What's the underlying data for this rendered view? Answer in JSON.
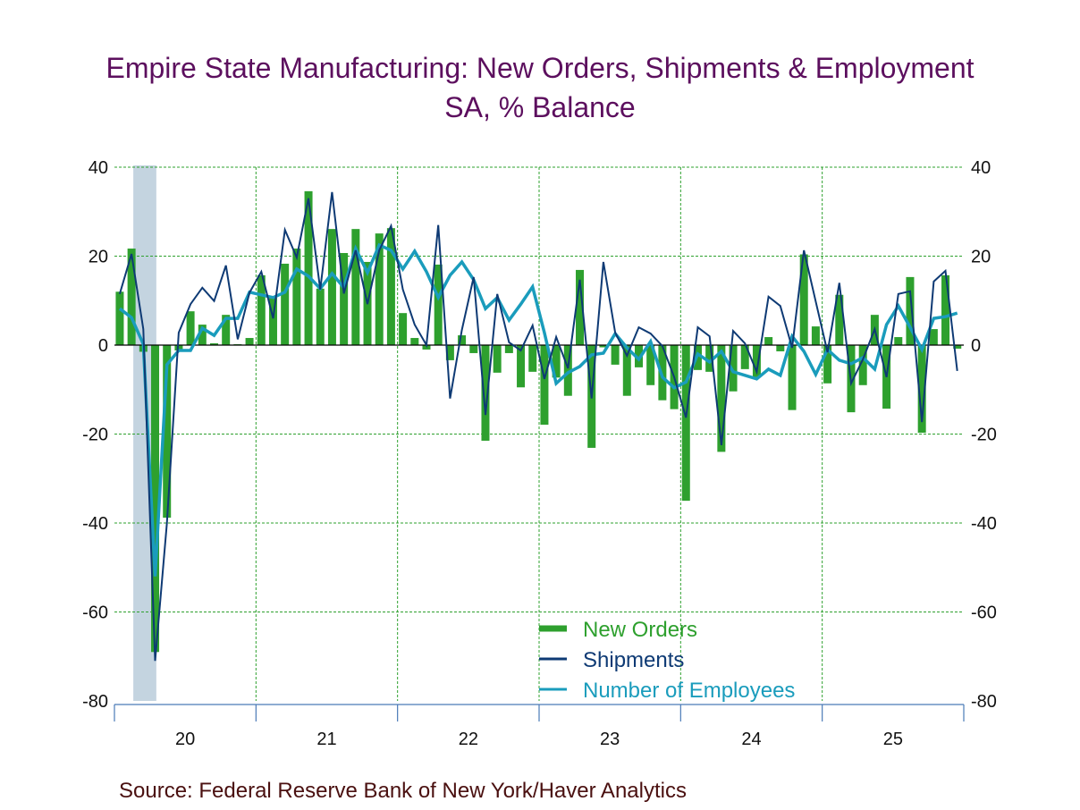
{
  "chart_data": {
    "type": "bar+line",
    "title": "Empire State Manufacturing: New Orders, Shipments & Employment",
    "subtitle": "SA, % Balance",
    "source": "Source:  Federal Reserve Bank of New York/Haver Analytics",
    "frequency": "monthly",
    "start": "2020-01",
    "end": "2025-12",
    "ylim": [
      -80,
      40
    ],
    "yticks": [
      "40",
      "20",
      "0",
      "-20",
      "-40",
      "-60",
      "-80"
    ],
    "ytick_values": [
      40,
      20,
      0,
      -20,
      -40,
      -60,
      -80
    ],
    "xtick_labels": [
      "20",
      "21",
      "22",
      "23",
      "24",
      "25"
    ],
    "grid": true,
    "legend_position": "bottom-center",
    "recession_shading": {
      "start": "2020-02",
      "end": "2020-04"
    },
    "series": [
      {
        "name": "New Orders",
        "kind": "bar",
        "color": "#2ea02e",
        "values": [
          12,
          21.7,
          -1.5,
          -69,
          -38.8,
          -1.2,
          7.6,
          4.6,
          0.4,
          6.8,
          0.2,
          1.6,
          15.7,
          10.7,
          18.3,
          21.7,
          34.6,
          12.7,
          26.1,
          20.7,
          26.1,
          18.7,
          25.1,
          26.3,
          7.2,
          1.6,
          -1,
          18.1,
          -3.4,
          2.2,
          -1.8,
          -21.5,
          -6.2,
          -1.8,
          -9.5,
          -6,
          -17.9,
          -7.3,
          -11.4,
          16.9,
          -23.1,
          -0.5,
          -4.4,
          -11.4,
          -5,
          -9,
          -12.4,
          -14.4,
          -35,
          -5.6,
          -6,
          -24,
          -10.4,
          -5.4,
          -7.2,
          1.8,
          -1.4,
          -14.6,
          20.4,
          4.2,
          -8.6,
          11.3,
          -15.1,
          -9,
          6.8,
          -14.3,
          1.8,
          15.3,
          -19.7,
          3.6,
          15.7,
          -0.8
        ]
      },
      {
        "name": "Shipments",
        "kind": "line",
        "color": "#0e3a74",
        "values": [
          11.5,
          20.5,
          3.6,
          -71,
          -40,
          2.8,
          9.2,
          12.9,
          9.9,
          17.9,
          1.3,
          11.8,
          16.5,
          6,
          25.9,
          19.7,
          33,
          12.5,
          34.4,
          11.6,
          21.3,
          9.2,
          21.3,
          26.8,
          12.5,
          4.6,
          0,
          27,
          -12,
          3.4,
          15.3,
          -15.7,
          11.5,
          0.6,
          -1.2,
          4.4,
          -7.6,
          1.8,
          -5.2,
          14.7,
          -12,
          18.7,
          2.8,
          -2.4,
          4,
          2.6,
          -0.2,
          -7.2,
          -16.3,
          4,
          2,
          -22.5,
          3.2,
          0.4,
          -6,
          10.9,
          8.8,
          -0.6,
          21.3,
          9.8,
          -1.6,
          14,
          -8.6,
          -3.2,
          3.6,
          -7.2,
          11.5,
          12.1,
          -17.3,
          14.3,
          16.7,
          -5.8
        ]
      },
      {
        "name": "Number of Employees",
        "kind": "line",
        "color": "#1a9cbc",
        "values": [
          8.2,
          6.2,
          0.2,
          -52,
          -4.4,
          -1.2,
          -1.2,
          3.8,
          2.2,
          6,
          6,
          11.9,
          11.3,
          10.7,
          11.9,
          17.1,
          15.5,
          12.7,
          16.1,
          12.9,
          21.7,
          16.3,
          22.5,
          21.3,
          17.1,
          21.1,
          16.5,
          10.7,
          15.7,
          18.7,
          14.7,
          8.2,
          10.7,
          5.6,
          9.2,
          13.1,
          2.8,
          -8.6,
          -6.2,
          -4.8,
          -2.2,
          -1.8,
          2.6,
          -0.6,
          -3.2,
          0.8,
          -7.2,
          -9.6,
          -8.3,
          -2,
          -3.8,
          -1.4,
          -6,
          -6.8,
          -7.6,
          -5.4,
          -6.8,
          2,
          -1.4,
          -6.6,
          -1,
          -3.4,
          -4.2,
          -2.8,
          -5.4,
          4.6,
          8.8,
          4,
          -1,
          6,
          6.4,
          7.2
        ]
      }
    ]
  }
}
